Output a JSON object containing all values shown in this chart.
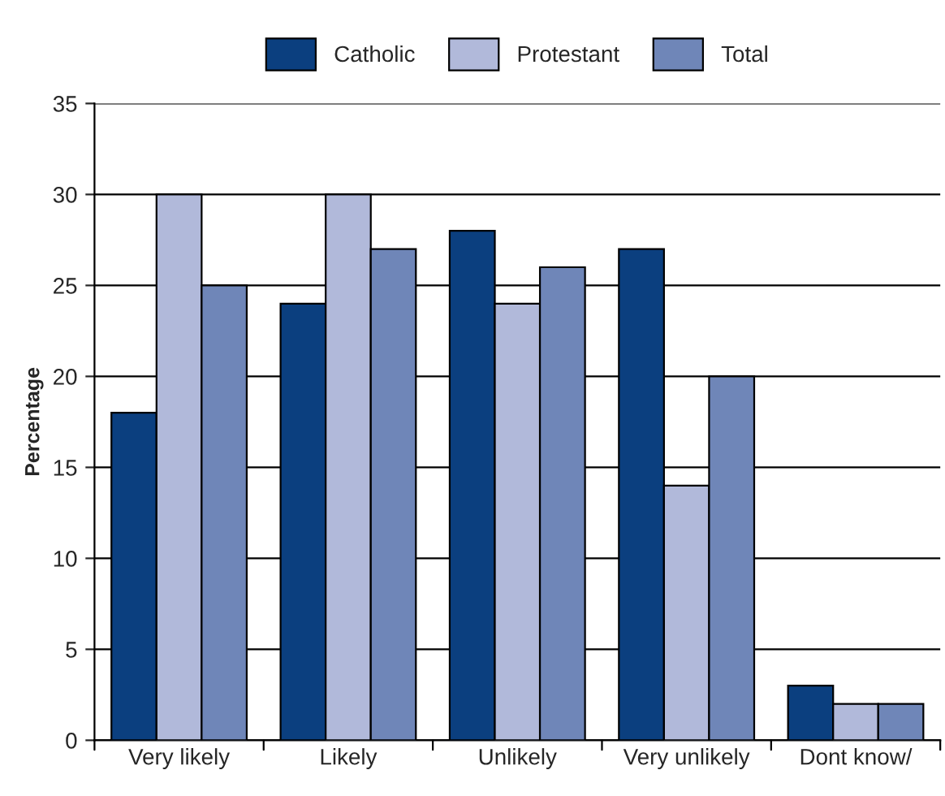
{
  "chart_data": {
    "type": "bar",
    "ylabel": "Percentage",
    "categories": [
      "Very likely",
      "Likely",
      "Unlikely",
      "Very unlikely",
      "Dont know/"
    ],
    "series": [
      {
        "name": "Catholic",
        "color": "#0b3f7f",
        "values": [
          18,
          24,
          28,
          27,
          3
        ]
      },
      {
        "name": "Protestant",
        "color": "#b1b9da",
        "values": [
          30,
          30,
          24,
          14,
          2
        ]
      },
      {
        "name": "Total",
        "color": "#6f86b8",
        "values": [
          25,
          27,
          26,
          20,
          2
        ]
      }
    ],
    "ylim": [
      0,
      35
    ],
    "yticks": [
      0,
      5,
      10,
      15,
      20,
      25,
      30,
      35
    ],
    "grid": "y",
    "legend": "top"
  }
}
